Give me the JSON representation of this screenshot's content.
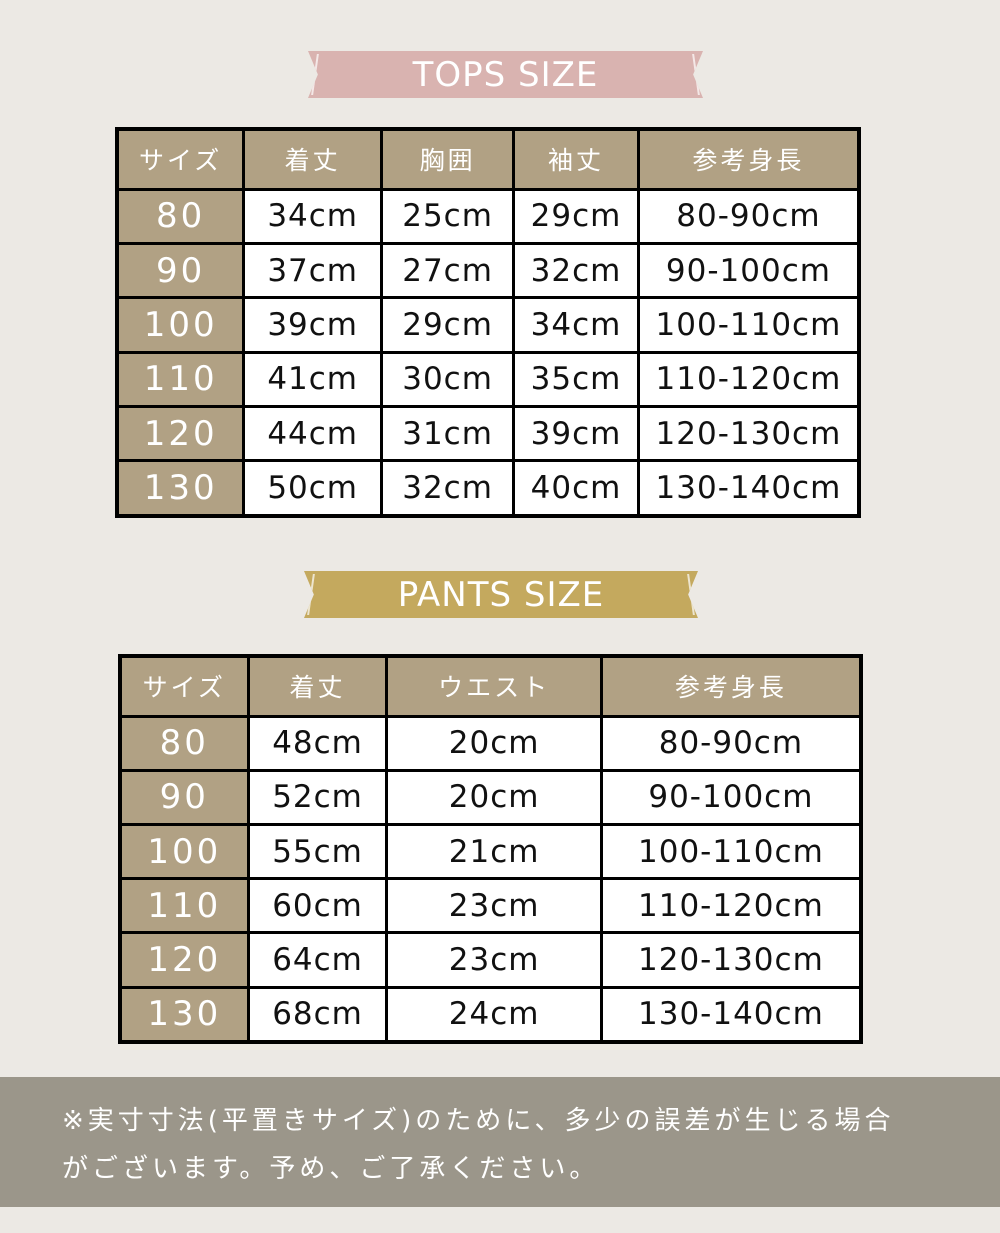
{
  "tops": {
    "title": "TOPS SIZE",
    "headers": [
      "サイズ",
      "着丈",
      "胸囲",
      "袖丈",
      "参考身長"
    ],
    "rows": [
      [
        "80",
        "34cm",
        "25cm",
        "29cm",
        "80-90cm"
      ],
      [
        "90",
        "37cm",
        "27cm",
        "32cm",
        "90-100cm"
      ],
      [
        "100",
        "39cm",
        "29cm",
        "34cm",
        "100-110cm"
      ],
      [
        "110",
        "41cm",
        "30cm",
        "35cm",
        "110-120cm"
      ],
      [
        "120",
        "44cm",
        "31cm",
        "39cm",
        "120-130cm"
      ],
      [
        "130",
        "50cm",
        "32cm",
        "40cm",
        "130-140cm"
      ]
    ]
  },
  "pants": {
    "title": "PANTS SIZE",
    "headers": [
      "サイズ",
      "着丈",
      "ウエスト",
      "参考身長"
    ],
    "rows": [
      [
        "80",
        "48cm",
        "20cm",
        "80-90cm"
      ],
      [
        "90",
        "52cm",
        "20cm",
        "90-100cm"
      ],
      [
        "100",
        "55cm",
        "21cm",
        "100-110cm"
      ],
      [
        "110",
        "60cm",
        "23cm",
        "110-120cm"
      ],
      [
        "120",
        "64cm",
        "23cm",
        "120-130cm"
      ],
      [
        "130",
        "68cm",
        "24cm",
        "130-140cm"
      ]
    ]
  },
  "footer": {
    "line1": "※実寸寸法(平置きサイズ)のために、多少の誤差が生じる場合",
    "line2": "がございます。予め、ご了承ください。"
  },
  "colors": {
    "background": "#ece9e4",
    "header_cell": "#b1a184",
    "tops_banner": "#d9b3b0",
    "pants_banner": "#c4a95e",
    "footer": "#9b968a"
  }
}
